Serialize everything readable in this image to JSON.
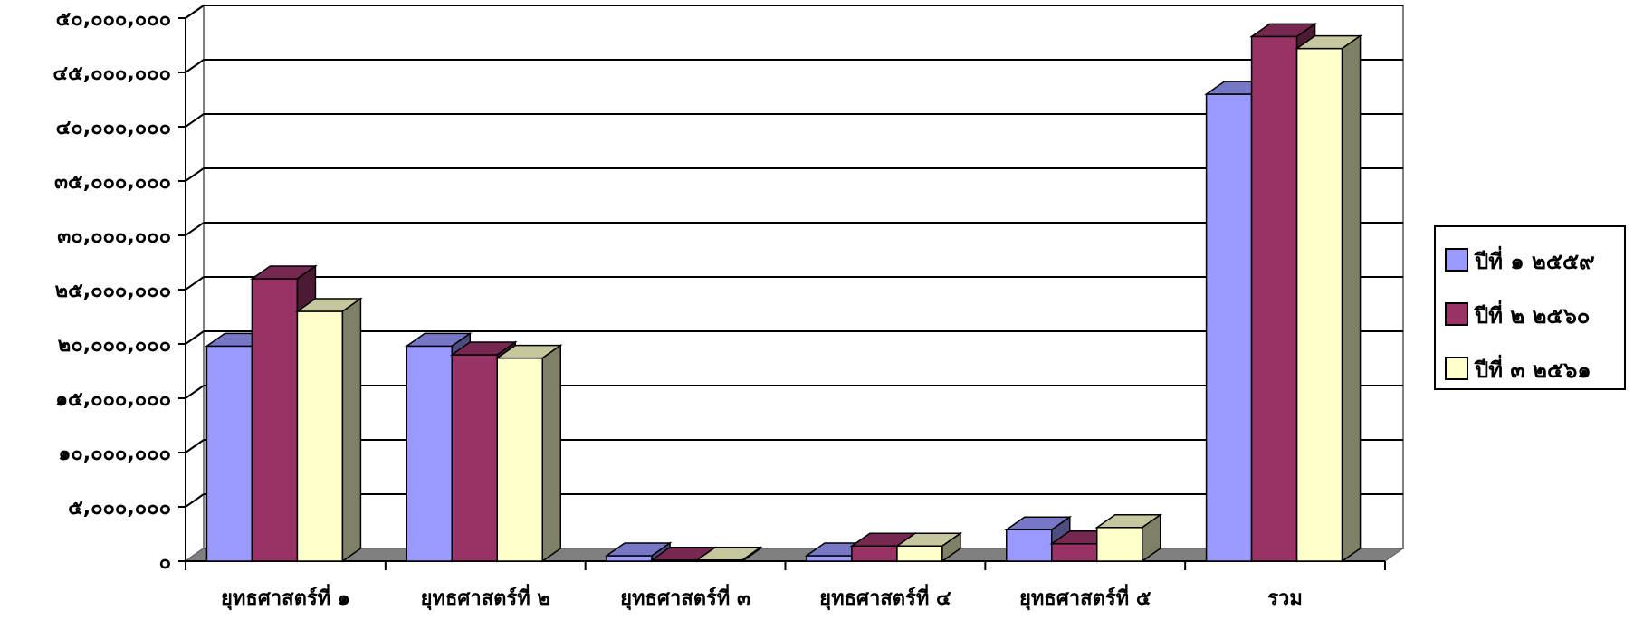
{
  "chart_data": {
    "type": "bar",
    "subtype": "3d-clustered-column",
    "title": "",
    "xlabel": "",
    "ylabel": "",
    "ylim": [
      0,
      50000000
    ],
    "yticks": [
      0,
      5000000,
      10000000,
      15000000,
      20000000,
      25000000,
      30000000,
      35000000,
      40000000,
      45000000,
      50000000
    ],
    "ytick_labels": [
      "๐",
      "๕,๐๐๐,๐๐๐",
      "๑๐,๐๐๐,๐๐๐",
      "๑๕,๐๐๐,๐๐๐",
      "๒๐,๐๐๐,๐๐๐",
      "๒๕,๐๐๐,๐๐๐",
      "๓๐,๐๐๐,๐๐๐",
      "๓๕,๐๐๐,๐๐๐",
      "๔๐,๐๐๐,๐๐๐",
      "๔๕,๐๐๐,๐๐๐",
      "๕๐,๐๐๐,๐๐๐"
    ],
    "categories": [
      "ยุทธศาสตร์ที่ ๑",
      "ยุทธศาสตร์ที่ ๒",
      "ยุทธศาสตร์ที่ ๓",
      "ยุทธศาสตร์ที่ ๔",
      "ยุทธศาสตร์ที่ ๕",
      "รวม"
    ],
    "series": [
      {
        "name": "ปีที่ ๑ ๒๕๕๙",
        "color": "#9999FF",
        "values": [
          19800000,
          19800000,
          500000,
          500000,
          2900000,
          43000000
        ]
      },
      {
        "name": "ปีที่ ๒ ๒๕๖๐",
        "color": "#993366",
        "values": [
          26000000,
          19000000,
          100000,
          1400000,
          1600000,
          48300000
        ]
      },
      {
        "name": "ปีที่ ๓ ๒๕๖๑",
        "color": "#FFFFCC",
        "values": [
          23000000,
          18700000,
          100000,
          1400000,
          3100000,
          47200000
        ]
      }
    ],
    "grid": true,
    "legend_position": "right"
  }
}
